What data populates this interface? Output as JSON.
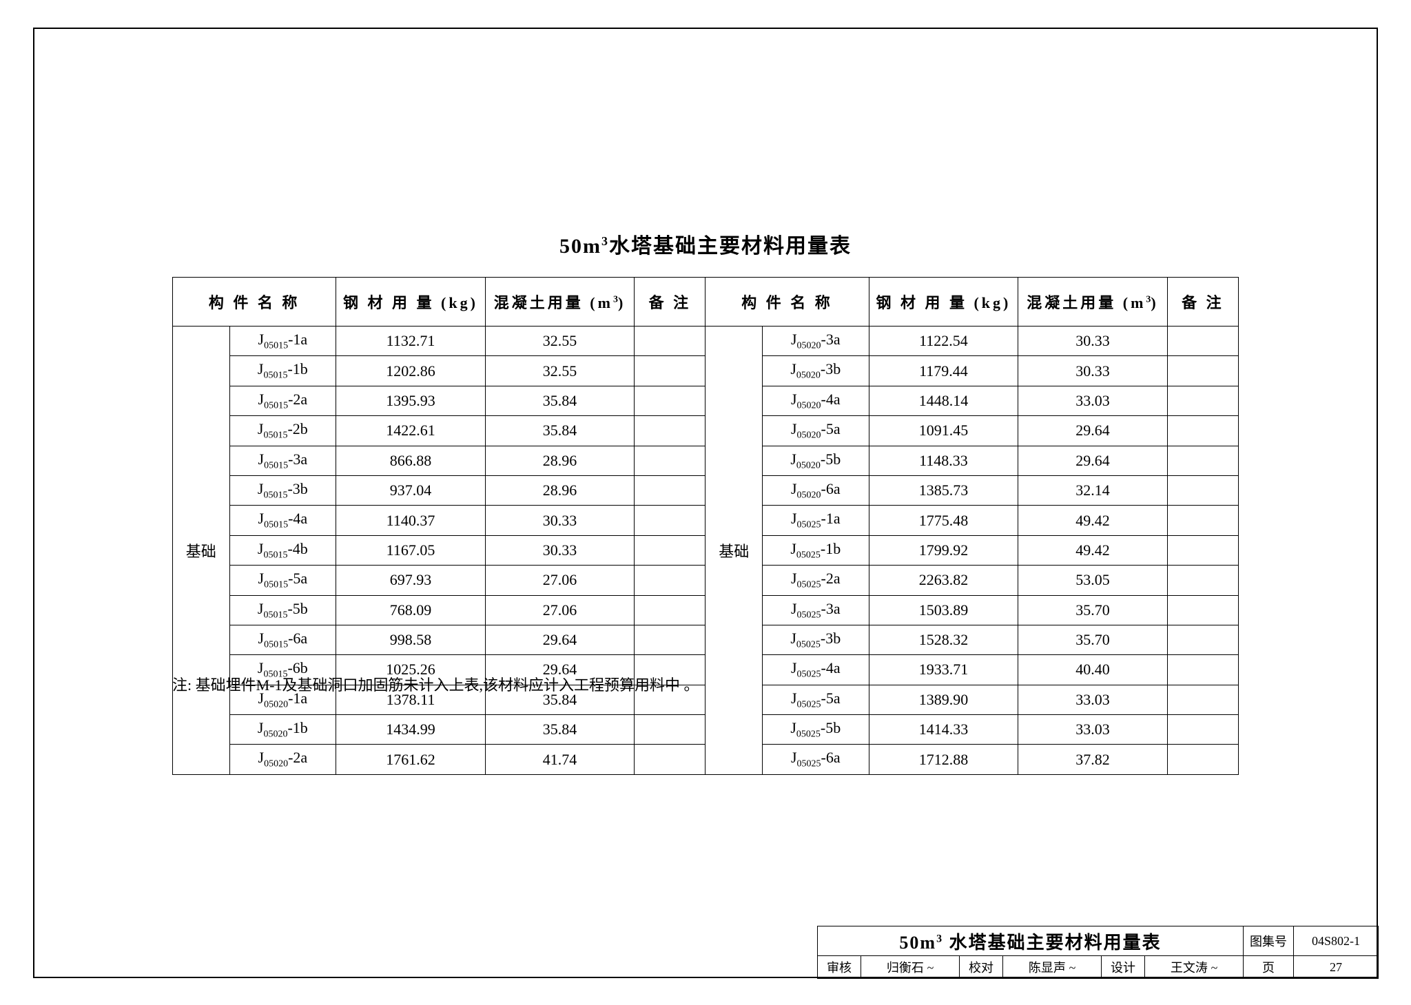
{
  "title_prefix": "50m",
  "title_unit_exponent": "3",
  "title_suffix": "水塔基础主要材料用量表",
  "headers": {
    "component_name": "构 件 名 称",
    "steel": "钢 材 用 量 (kg)",
    "concrete_prefix": "混凝土用量 (m",
    "concrete_exp": "3",
    "concrete_suffix": ")",
    "remark": "备 注"
  },
  "group_label": "基础",
  "code_prefix": "J",
  "left_rows": [
    {
      "sub": "05015",
      "suf": "-1a",
      "steel": "1132.71",
      "conc": "32.55"
    },
    {
      "sub": "05015",
      "suf": "-1b",
      "steel": "1202.86",
      "conc": "32.55"
    },
    {
      "sub": "05015",
      "suf": "-2a",
      "steel": "1395.93",
      "conc": "35.84"
    },
    {
      "sub": "05015",
      "suf": "-2b",
      "steel": "1422.61",
      "conc": "35.84"
    },
    {
      "sub": "05015",
      "suf": "-3a",
      "steel": "866.88",
      "conc": "28.96"
    },
    {
      "sub": "05015",
      "suf": "-3b",
      "steel": "937.04",
      "conc": "28.96"
    },
    {
      "sub": "05015",
      "suf": "-4a",
      "steel": "1140.37",
      "conc": "30.33"
    },
    {
      "sub": "05015",
      "suf": "-4b",
      "steel": "1167.05",
      "conc": "30.33"
    },
    {
      "sub": "05015",
      "suf": "-5a",
      "steel": "697.93",
      "conc": "27.06"
    },
    {
      "sub": "05015",
      "suf": "-5b",
      "steel": "768.09",
      "conc": "27.06"
    },
    {
      "sub": "05015",
      "suf": "-6a",
      "steel": "998.58",
      "conc": "29.64"
    },
    {
      "sub": "05015",
      "suf": "-6b",
      "steel": "1025.26",
      "conc": "29.64"
    },
    {
      "sub": "05020",
      "suf": "-1a",
      "steel": "1378.11",
      "conc": "35.84"
    },
    {
      "sub": "05020",
      "suf": "-1b",
      "steel": "1434.99",
      "conc": "35.84"
    },
    {
      "sub": "05020",
      "suf": "-2a",
      "steel": "1761.62",
      "conc": "41.74"
    }
  ],
  "right_rows": [
    {
      "sub": "05020",
      "suf": "-3a",
      "steel": "1122.54",
      "conc": "30.33"
    },
    {
      "sub": "05020",
      "suf": "-3b",
      "steel": "1179.44",
      "conc": "30.33"
    },
    {
      "sub": "05020",
      "suf": "-4a",
      "steel": "1448.14",
      "conc": "33.03"
    },
    {
      "sub": "05020",
      "suf": "-5a",
      "steel": "1091.45",
      "conc": "29.64"
    },
    {
      "sub": "05020",
      "suf": "-5b",
      "steel": "1148.33",
      "conc": "29.64"
    },
    {
      "sub": "05020",
      "suf": "-6a",
      "steel": "1385.73",
      "conc": "32.14"
    },
    {
      "sub": "05025",
      "suf": "-1a",
      "steel": "1775.48",
      "conc": "49.42"
    },
    {
      "sub": "05025",
      "suf": "-1b",
      "steel": "1799.92",
      "conc": "49.42"
    },
    {
      "sub": "05025",
      "suf": "-2a",
      "steel": "2263.82",
      "conc": "53.05"
    },
    {
      "sub": "05025",
      "suf": "-3a",
      "steel": "1503.89",
      "conc": "35.70"
    },
    {
      "sub": "05025",
      "suf": "-3b",
      "steel": "1528.32",
      "conc": "35.70"
    },
    {
      "sub": "05025",
      "suf": "-4a",
      "steel": "1933.71",
      "conc": "40.40"
    },
    {
      "sub": "05025",
      "suf": "-5a",
      "steel": "1389.90",
      "conc": "33.03"
    },
    {
      "sub": "05025",
      "suf": "-5b",
      "steel": "1414.33",
      "conc": "33.03"
    },
    {
      "sub": "05025",
      "suf": "-6a",
      "steel": "1712.88",
      "conc": "37.82"
    }
  ],
  "footnote": "注: 基础埋件M-1及基础洞口加固筋未计入上表,该材料应计入工程预算用料中 。",
  "title_block": {
    "main_prefix": "50m",
    "main_exp": "3",
    "main_suffix": " 水塔基础主要材料用量表",
    "atlas_label": "图集号",
    "atlas_value": "04S802-1",
    "review_label": "审核",
    "review_name": "归衡石",
    "check_label": "校对",
    "check_name": "陈显声",
    "design_label": "设计",
    "design_name": "王文涛",
    "page_label": "页",
    "page_value": "27"
  }
}
